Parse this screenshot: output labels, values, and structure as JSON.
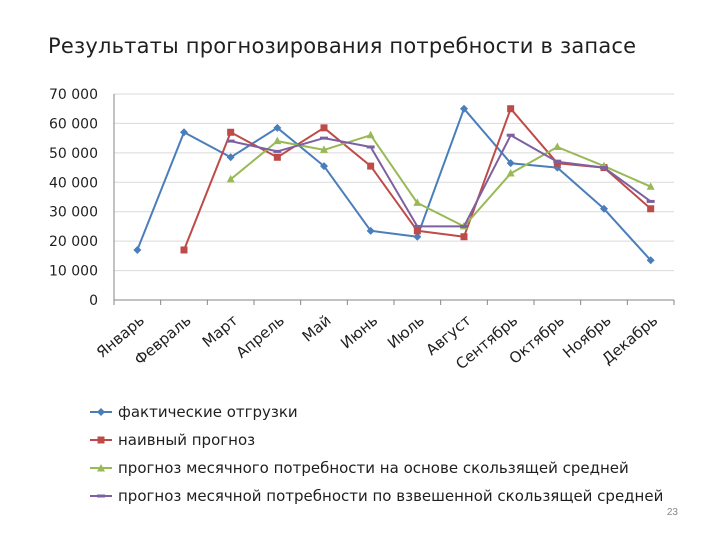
{
  "slide": {
    "title": "Результаты прогнозирования потребности в запасе",
    "page_number": "23"
  },
  "chart_data": {
    "type": "line",
    "title": "Результаты прогнозирования потребности в запасе",
    "xlabel": "",
    "ylabel": "",
    "ylim": [
      0,
      70000
    ],
    "y_ticks": [
      "0",
      "10 000",
      "20 000",
      "30 000",
      "40 000",
      "50 000",
      "60 000",
      "70 000"
    ],
    "y_tick_values": [
      0,
      10000,
      20000,
      30000,
      40000,
      50000,
      60000,
      70000
    ],
    "grid": true,
    "legend_position": "bottom",
    "categories": [
      "Январь",
      "Февраль",
      "Март",
      "Апрель",
      "Май",
      "Июнь",
      "Июль",
      "Август",
      "Сентябрь",
      "Октябрь",
      "Ноябрь",
      "Декабрь"
    ],
    "series": [
      {
        "name": "фактические отгрузки",
        "color": "#4a7ebb",
        "marker": "diamond",
        "values": [
          17000,
          57000,
          48500,
          58500,
          45500,
          23500,
          21500,
          65000,
          46500,
          45000,
          31000,
          13500
        ]
      },
      {
        "name": "наивный прогноз",
        "color": "#be4b48",
        "marker": "square",
        "values": [
          null,
          17000,
          57000,
          48500,
          58500,
          45500,
          23500,
          21500,
          65000,
          46500,
          45000,
          31000
        ]
      },
      {
        "name": "прогноз месячного потребности на основе скользящей средней",
        "color": "#98b954",
        "marker": "triangle",
        "values": [
          null,
          null,
          41000,
          54000,
          51000,
          56000,
          33000,
          25000,
          43000,
          52000,
          45500,
          38500
        ]
      },
      {
        "name": "прогноз месячной потребности по взвешенной скользящей средней",
        "color": "#7d60a0",
        "marker": "dash",
        "values": [
          null,
          null,
          54000,
          50500,
          55000,
          52000,
          25000,
          25000,
          56000,
          47000,
          45000,
          33500
        ]
      }
    ]
  }
}
